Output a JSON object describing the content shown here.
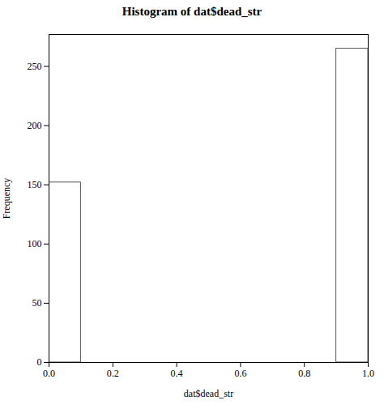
{
  "chart_data": {
    "type": "histogram",
    "title": "Histogram of dat$dead_str",
    "xlabel": "dat$dead_str",
    "ylabel": "Frequency",
    "bins": [
      0.0,
      0.1,
      0.2,
      0.3,
      0.4,
      0.5,
      0.6,
      0.7,
      0.8,
      0.9,
      1.0
    ],
    "values": [
      152,
      0,
      0,
      0,
      0,
      0,
      0,
      0,
      0,
      265
    ],
    "color": "#ffffff",
    "xlim": [
      0.0,
      1.0
    ],
    "ylim": [
      0,
      277
    ],
    "xticks": [
      {
        "value": 0,
        "label": "0.0"
      },
      0.2,
      0.4,
      0.6,
      0.8,
      {
        "value": 1,
        "label": "1.0"
      }
    ],
    "yticks": [
      0,
      50,
      100,
      150,
      200,
      250
    ],
    "grid": false
  }
}
